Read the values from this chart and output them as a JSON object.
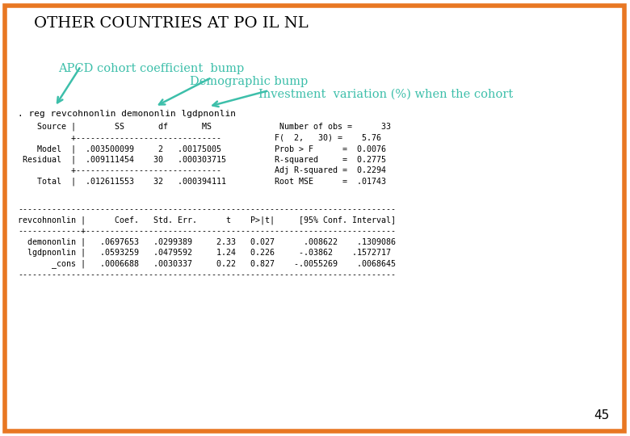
{
  "title": "OTHER COUNTRIES AT PO IL NL",
  "bg_color": "#ffffff",
  "border_color": "#e87722",
  "page_number": "45",
  "annotation1": "APCD cohort coefficient  bump",
  "annotation2": "Demographic bump",
  "annotation3": "Investment  variation (%) when the cohort",
  "arrow_color": "#3dbfaa",
  "cmd_line": ". reg revcohnonlin demononlin lgdpnonlin",
  "stata_output": [
    "    Source |        SS       df       MS              Number of obs =      33",
    "           +------------------------------           F(  2,   30) =    5.76",
    "    Model  |  .003500099     2   .00175005           Prob > F      =  0.0076",
    " Residual  |  .009111454    30   .000303715          R-squared     =  0.2775",
    "           +------------------------------           Adj R-squared =  0.2294",
    "    Total  |  .012611553    32   .000394111          Root MSE      =  .01743"
  ],
  "stata_output2": [
    "------------------------------------------------------------------------------",
    "revcohnonlin |      Coef.   Std. Err.      t    P>|t|     [95% Conf. Interval]",
    "-------------+----------------------------------------------------------------",
    "  demononlin |   .0697653   .0299389     2.33   0.027      .008622    .1309086",
    "  lgdpnonlin |   .0593259   .0479592     1.24   0.226     -.03862    .1572717",
    "       _cons |   .0006688   .0030337     0.22   0.827    -.0055269    .0068645",
    "------------------------------------------------------------------------------"
  ]
}
